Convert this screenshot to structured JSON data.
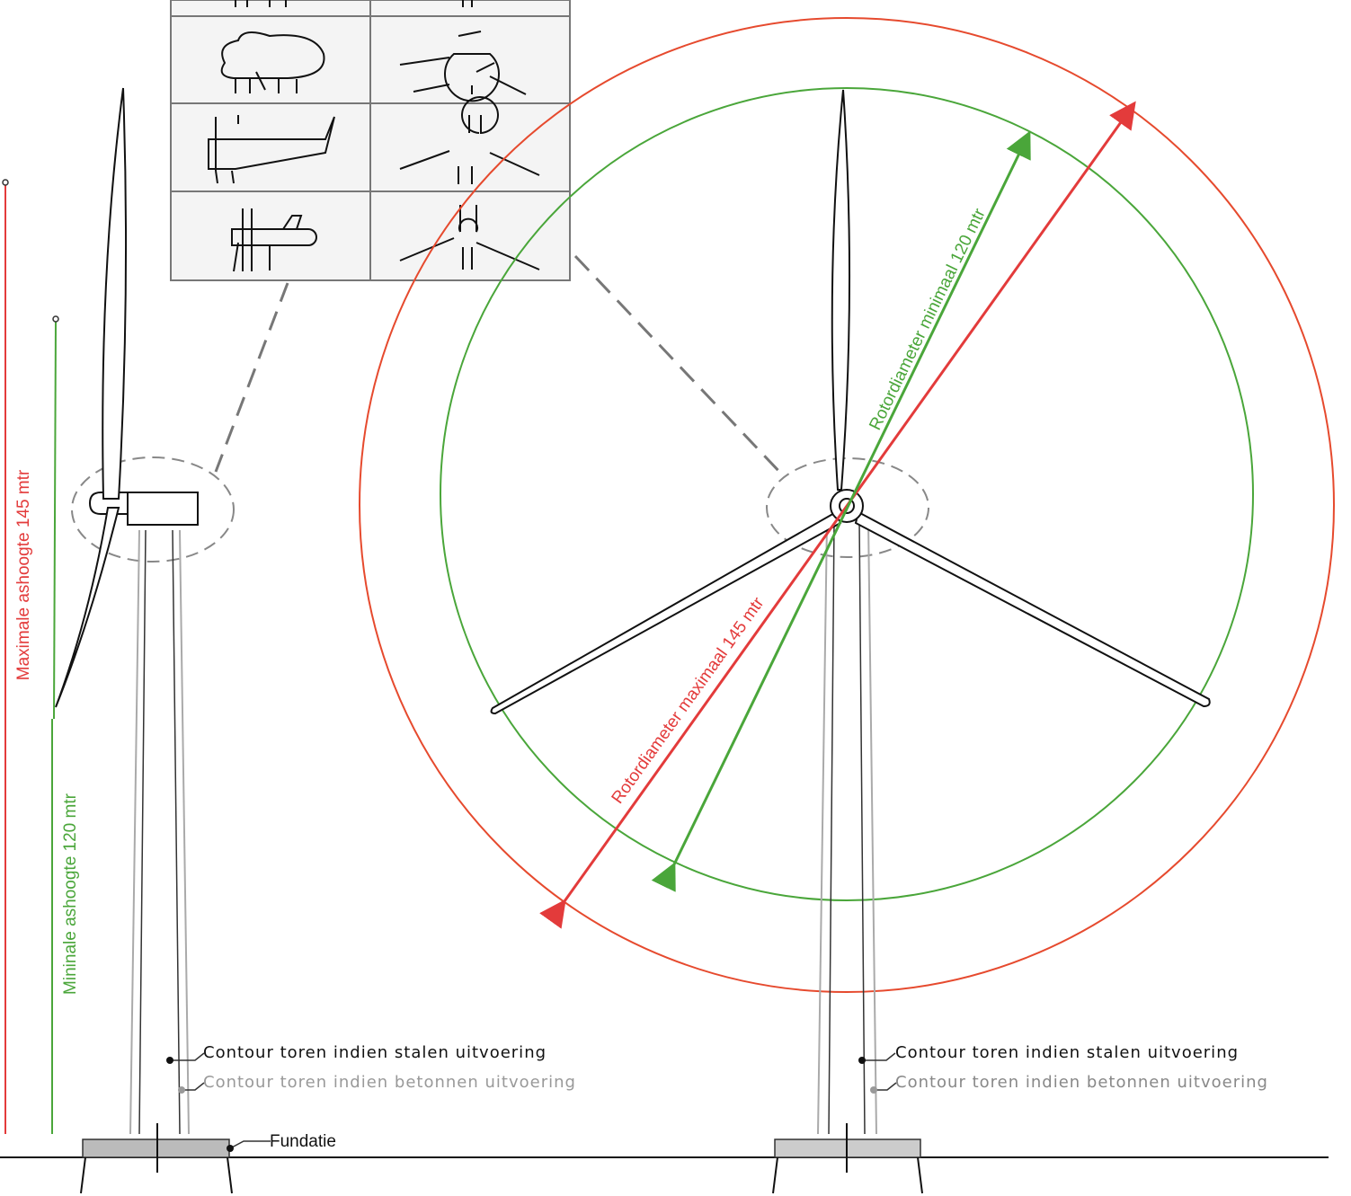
{
  "labels": {
    "max_hub_height": "Maximale ashoogte 145 mtr",
    "min_hub_height": "Mininale ashoogte 120 mtr",
    "rotor_min": "Rotordiameter minimaal 120 mtr",
    "rotor_max": "Rotordiameter maximaal 145 mtr"
  },
  "left_turbine": {
    "steel": "Contour toren indien stalen uitvoering",
    "concrete": "Contour toren indien betonnen uitvoering",
    "foundation": "Fundatie"
  },
  "right_turbine": {
    "steel": "Contour toren indien stalen uitvoering",
    "concrete": "Contour toren indien betonnen uitvoering"
  }
}
